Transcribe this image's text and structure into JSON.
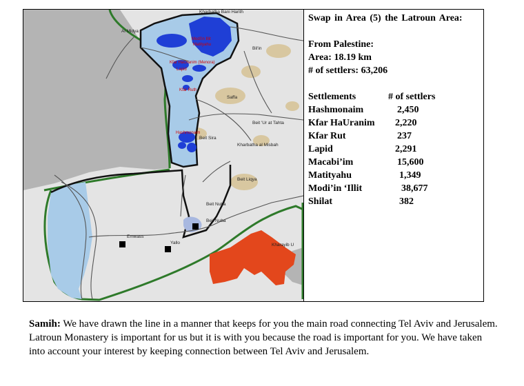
{
  "panel": {
    "title": "Swap in Area (5) the Latroun Area:",
    "from": "From Palestine:",
    "area": "Area: 18.19 km",
    "settlers_total": "# of settlers: 63,206",
    "col_settlements": "Settlements",
    "col_settlers": "# of settlers",
    "rows": [
      {
        "name": "Hashmonaim",
        "value": "2,450"
      },
      {
        "name": "Kfar HaUranim",
        "value": "2,220"
      },
      {
        "name": "Kfar Rut",
        "value": "237"
      },
      {
        "name": "Lapid",
        "value": "2,291"
      },
      {
        "name": "Macabi’im",
        "value": "15,600"
      },
      {
        "name": "Matityahu",
        "value": "1,349"
      },
      {
        "name": "Modi’in ‘Illit",
        "value": "38,677"
      },
      {
        "name": "Shilat",
        "value": "382"
      }
    ]
  },
  "map": {
    "labels": {
      "kharbatha_top": "Kharbatha Bani Harith",
      "al_midya": "Al Midya",
      "bilin": "Bil'in",
      "saffa": "Saffa",
      "beit_ur": "Beit 'Ur at Tahta",
      "beit_sira": "Beit Sira",
      "kharbatha_misbah": "Kharbatha al Misbah",
      "beit_liqya": "Beit Liqya",
      "beit_nuba_1": "Beit Nuba",
      "beit_nuba_2": "Beit Nuba",
      "emwass": "Emwass",
      "yallo": "Yallo",
      "kharayib": "Kharayib U"
    },
    "red_labels": {
      "modiin_illit": "Modi'in Illit",
      "matityahu": "Matityahu",
      "kfar_hauranim": "Kfar HaUranim (Menora)",
      "lapid": "Lapid",
      "kfar_ruth": "Kfar Ruth",
      "hashmonaim": "Hashmonaim"
    },
    "colors": {
      "swap_area": "#a8cbe8",
      "settlement": "#1f3fd6",
      "territory": "#e4e4e4",
      "israel": "#b4b4b4",
      "green_line": "#2e7a2a",
      "red_area": "#e3471c",
      "built_up": "#d8c7a0"
    }
  },
  "quote": {
    "speaker": "Samih:",
    "text": " We have drawn the line in a manner that keeps for you the main road connecting Tel Aviv and Jerusalem. Latroun Monastery is important for us but it is with you because the road is important for you. We have taken into account your interest by keeping connection between Tel Aviv and Jerusalem."
  }
}
